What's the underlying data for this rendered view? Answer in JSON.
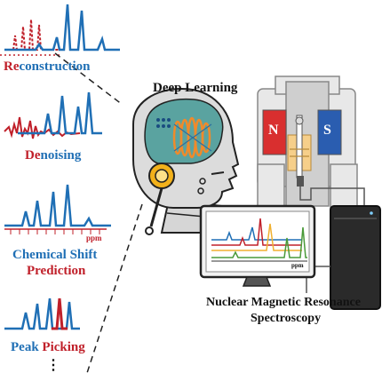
{
  "left_panel": {
    "reconstruction": {
      "accent": "Re",
      "rest": "construction"
    },
    "denoising": {
      "part1": "De",
      "part2": "noising"
    },
    "chemical_shift": {
      "line1": "Chemical Shift",
      "line2": "Prediction",
      "axis_unit": "ppm"
    },
    "peak_picking": {
      "part1": "Peak ",
      "part2": "Picking"
    },
    "ellipsis": "⋮"
  },
  "center": {
    "title": "Deep Learning"
  },
  "right": {
    "magnet_left": "N",
    "magnet_right": "S",
    "monitor_axis_unit": "ppm",
    "caption_line1": "Nuclear Magnetic Resonance",
    "caption_line2": "Spectroscopy"
  },
  "colors": {
    "blue": "#1f6fb5",
    "red": "#c0202a",
    "magnet_blue": "#2a5db0",
    "magnet_red": "#d92f2f",
    "head_teal": "#5aa3a0"
  }
}
